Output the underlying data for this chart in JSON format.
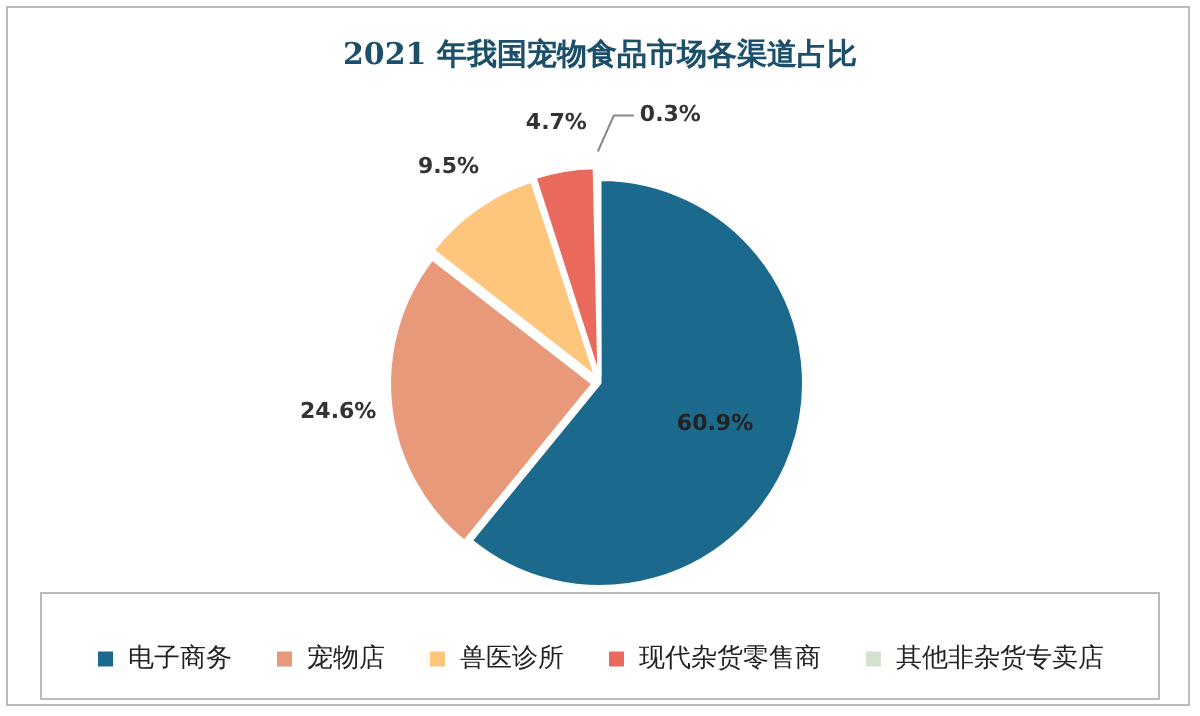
{
  "chart_data": {
    "type": "pie",
    "title": "2021 年我国宠物食品市场各渠道占比",
    "categories": [
      "电子商务",
      "宠物店",
      "兽医诊所",
      "现代杂货零售商",
      "其他非杂货专卖店"
    ],
    "values": [
      60.9,
      24.6,
      9.5,
      4.7,
      0.3
    ],
    "colors": [
      "#1b6a8e",
      "#e8997a",
      "#fec67d",
      "#e96a5c",
      "#d3e2cf"
    ],
    "value_labels": [
      "60.9%",
      "24.6%",
      "9.5%",
      "4.7%",
      "0.3%"
    ],
    "legend": "bottom"
  }
}
